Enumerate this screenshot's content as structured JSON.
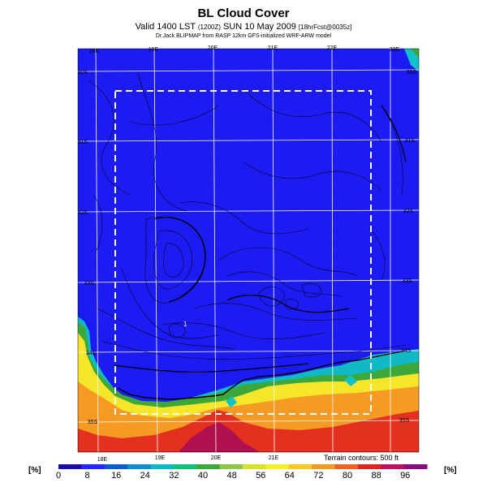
{
  "header": {
    "title": "BL Cloud Cover",
    "subtitle_main": "Valid 1400 LST",
    "subtitle_small1": "(1200Z)",
    "subtitle_date": "SUN 10 May 2009",
    "subtitle_small2": "[18hrFcst@0035z]",
    "credit": "Dr.Jack BLIPMAP from RASP 12km GFS-initialized WRF-ARW model"
  },
  "map": {
    "lon_labels_top": [
      "18E",
      "19E",
      "20E",
      "21E",
      "22E",
      "23E"
    ],
    "lon_labels_bottom": [
      "18E",
      "19E",
      "20E",
      "21E"
    ],
    "lat_labels_left": [
      "30S",
      "31S",
      "32S",
      "33S",
      "34S",
      "35S"
    ],
    "lat_labels_right": [
      "30S",
      "31S",
      "32S",
      "33S",
      "34S",
      "35S"
    ],
    "marker": "1",
    "terrain_note": "Terrain contours: 500 ft"
  },
  "colorbar": {
    "unit_left": "[%]",
    "unit_right": "[%]",
    "ticks": [
      "0",
      "8",
      "16",
      "24",
      "32",
      "40",
      "48",
      "56",
      "64",
      "72",
      "80",
      "88",
      "96"
    ],
    "colors": [
      "#1a0dab",
      "#2626ff",
      "#0a5ad2",
      "#0b8fd0",
      "#10b9c4",
      "#12c07a",
      "#3ca83a",
      "#8cc84a",
      "#d8e22e",
      "#f5ee2a",
      "#f8c828",
      "#f39a22",
      "#f0601e",
      "#e02420",
      "#c01060",
      "#8a0a80"
    ]
  },
  "legend_colors": {
    "sea_land_blue": "#1e1ef0",
    "border": "#ffffff"
  }
}
